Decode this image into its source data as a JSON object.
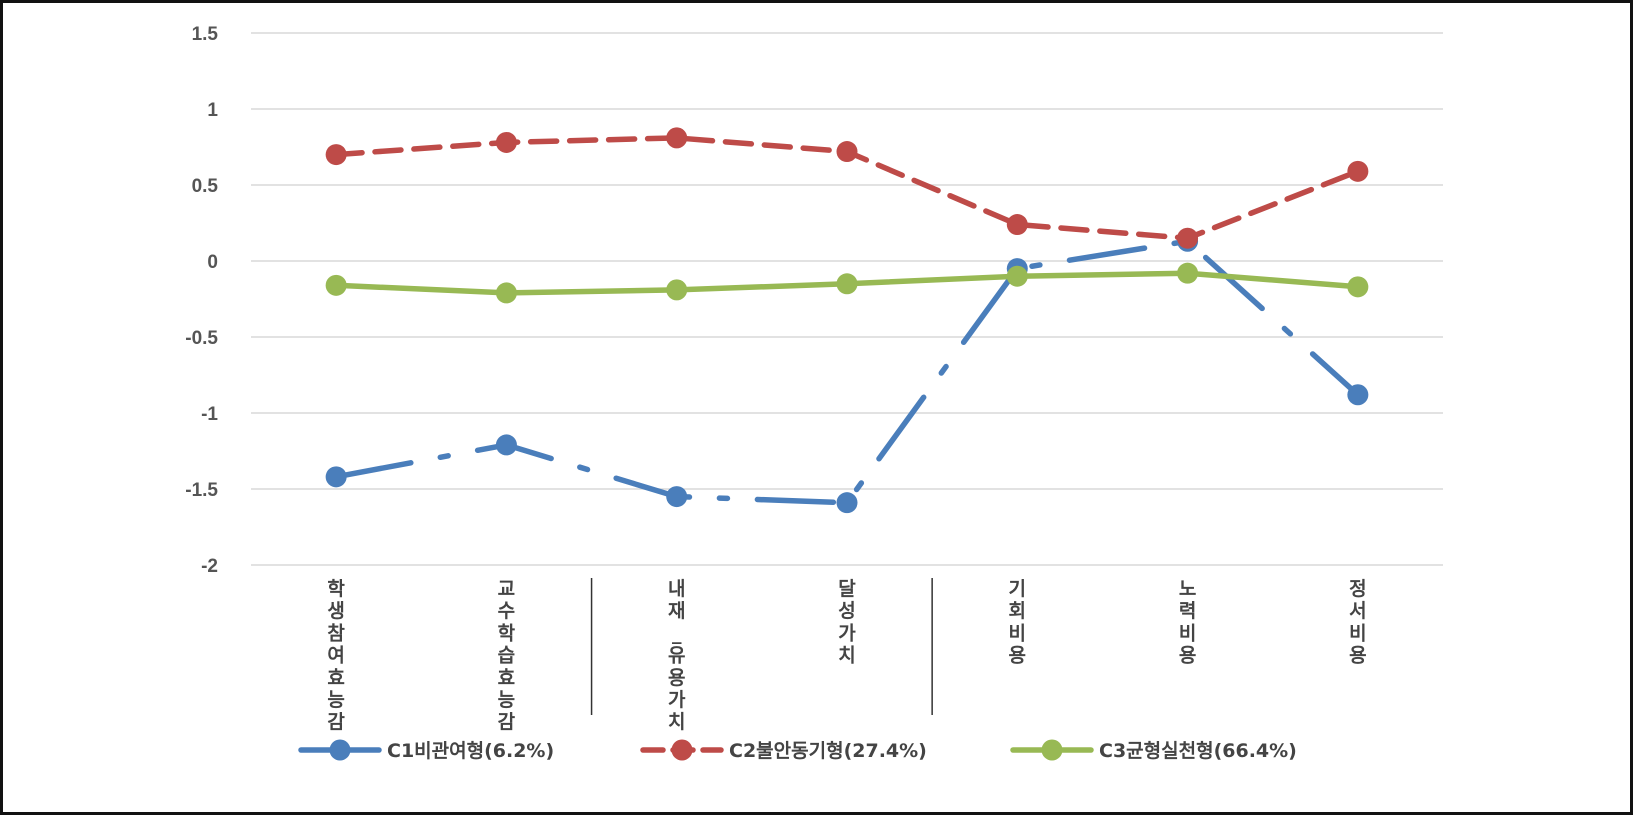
{
  "chart_data": {
    "type": "line",
    "title": "",
    "xlabel": "",
    "ylabel": "",
    "ylim": [
      -2,
      1.5
    ],
    "yticks": [
      1.5,
      1,
      0.5,
      0,
      -0.5,
      -1,
      -1.5,
      -2
    ],
    "ytick_labels": [
      "1.5",
      "1",
      "0.5",
      "0",
      "-0.5",
      "-1",
      "-1.5",
      "-2"
    ],
    "grid": true,
    "legend_position": "bottom",
    "categories": [
      "학생참여효능감",
      "교수학습효능감",
      "내재_유용가치",
      "달성가치",
      "기회비용",
      "노력비용",
      "정서비용"
    ],
    "series": [
      {
        "name": "C1비관여형(6.2%)",
        "color": "#4a7ebb",
        "line_style": "dash-dot",
        "values": [
          -1.42,
          -1.21,
          -1.55,
          -1.59,
          -0.05,
          0.13,
          -0.88
        ]
      },
      {
        "name": "C2불안동기형(27.4%)",
        "color": "#be4b48",
        "line_style": "dashed",
        "values": [
          0.7,
          0.78,
          0.81,
          0.72,
          0.24,
          0.15,
          0.59
        ]
      },
      {
        "name": "C3균형실천형(66.4%)",
        "color": "#98b954",
        "line_style": "solid",
        "values": [
          -0.16,
          -0.21,
          -0.19,
          -0.15,
          -0.1,
          -0.08,
          -0.17
        ]
      }
    ]
  }
}
